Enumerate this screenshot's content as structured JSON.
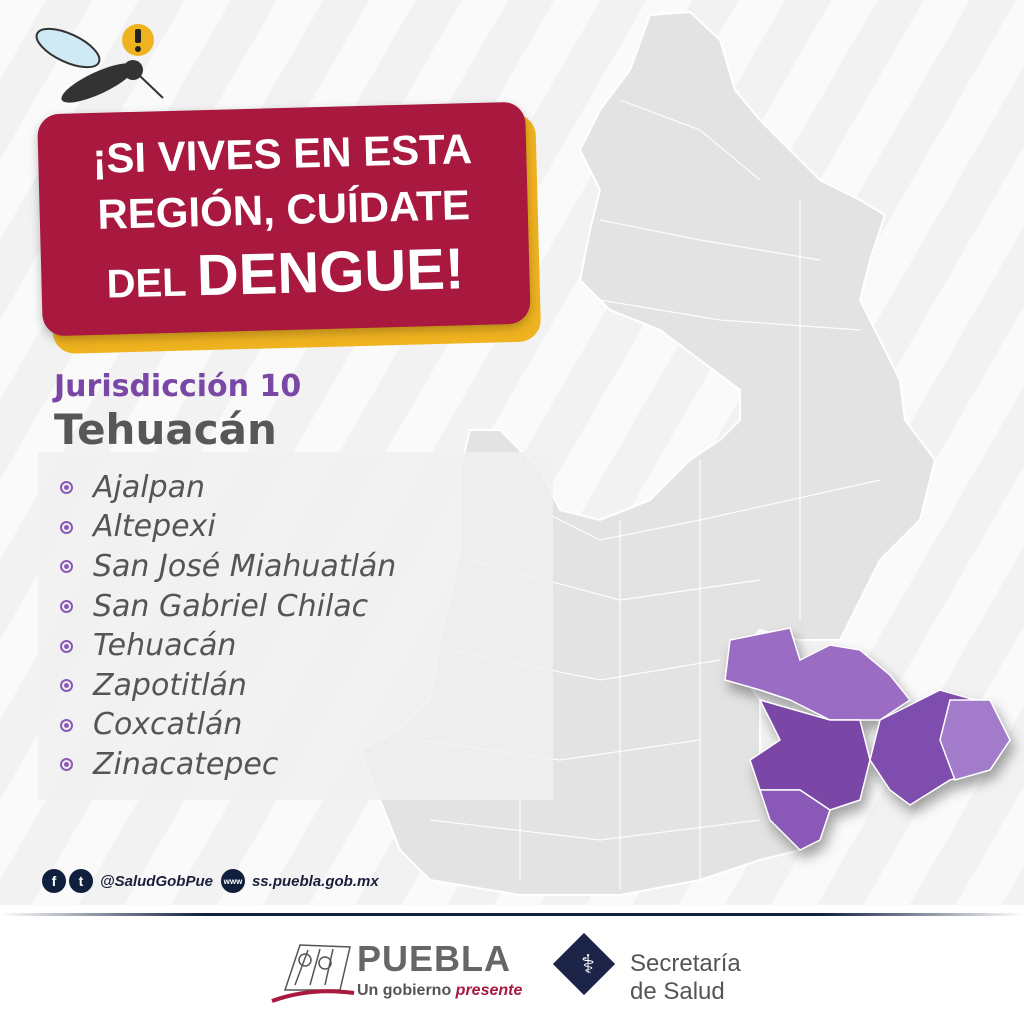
{
  "banner": {
    "line1": "¡SI VIVES EN ESTA",
    "line2": "REGIÓN, CUÍDATE",
    "line3_small": "DEL",
    "line3_big": "DENGUE!",
    "colors": {
      "background": "#a8183f",
      "shadow": "#efb320"
    }
  },
  "jurisdiction": {
    "label": "Jurisdicción 10",
    "name": "Tehuacán"
  },
  "municipalities": [
    "Ajalpan",
    "Altepexi",
    "San José Miahuatlán",
    "San Gabriel Chilac",
    "Tehuacán",
    "Zapotitlán",
    "Coxcatlán",
    "Zinacatepec"
  ],
  "social": {
    "icons": [
      "facebook-icon",
      "twitter-icon",
      "www-icon"
    ],
    "handle": "@SaludGobPue",
    "website": "ss.puebla.gob.mx"
  },
  "footer": {
    "puebla_word": "PUEBLA",
    "puebla_tagline_a": "Un gobierno",
    "puebla_tagline_b": "presente",
    "secretaria_line1": "Secretaría",
    "secretaria_line2": "de Salud"
  },
  "colors": {
    "highlight_region": "#7a47a6",
    "map_gray": "#e4e4e4"
  }
}
